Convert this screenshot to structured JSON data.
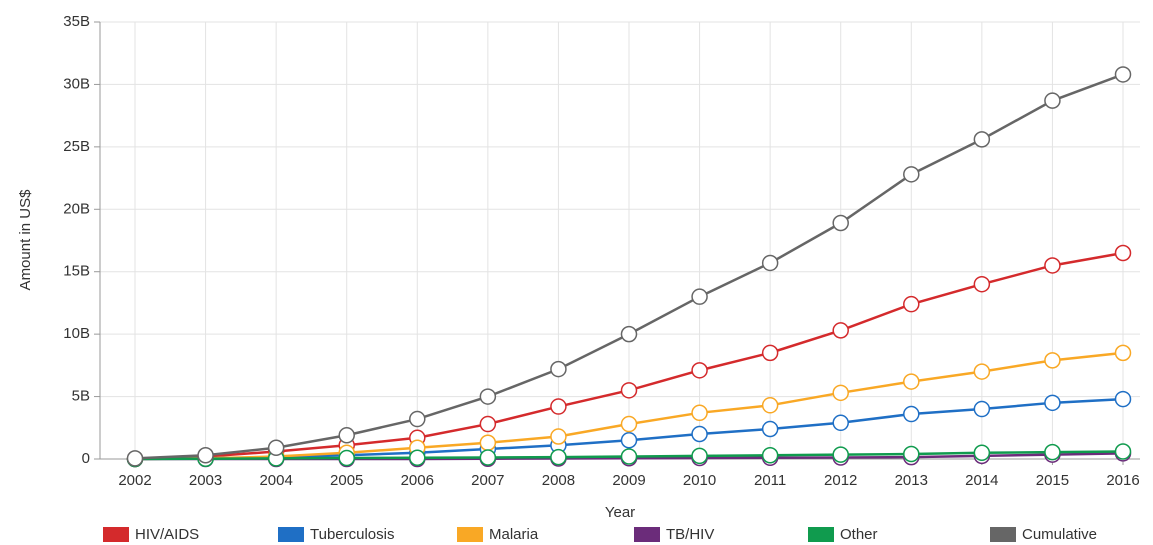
{
  "chart_data": {
    "type": "line",
    "xlabel": "Year",
    "ylabel": "Amount in US$",
    "categories": [
      "2002",
      "2003",
      "2004",
      "2005",
      "2006",
      "2007",
      "2008",
      "2009",
      "2010",
      "2011",
      "2012",
      "2013",
      "2014",
      "2015",
      "2016"
    ],
    "ylim": [
      0,
      35000000000.0
    ],
    "yticks": [
      {
        "value": 0,
        "label": "0"
      },
      {
        "value": 5000000000.0,
        "label": "5B"
      },
      {
        "value": 10000000000.0,
        "label": "10B"
      },
      {
        "value": 15000000000.0,
        "label": "15B"
      },
      {
        "value": 20000000000.0,
        "label": "20B"
      },
      {
        "value": 25000000000.0,
        "label": "25B"
      },
      {
        "value": 30000000000.0,
        "label": "30B"
      },
      {
        "value": 35000000000.0,
        "label": "35B"
      }
    ],
    "grid": true,
    "legend": "bottom",
    "series": [
      {
        "name": "HIV/AIDS",
        "color": "#d42a2c",
        "values": [
          20000000.0,
          200000000.0,
          600000000.0,
          1100000000.0,
          1700000000.0,
          2800000000.0,
          4200000000.0,
          5500000000.0,
          7100000000.0,
          8500000000.0,
          10300000000.0,
          12400000000.0,
          14000000000.0,
          15500000000.0,
          16500000000.0
        ]
      },
      {
        "name": "Tuberculosis",
        "color": "#1f6fc5",
        "values": [
          0,
          50000000.0,
          150000000.0,
          300000000.0,
          500000000.0,
          800000000.0,
          1100000000.0,
          1500000000.0,
          2000000000.0,
          2400000000.0,
          2900000000.0,
          3600000000.0,
          4000000000.0,
          4500000000.0,
          4800000000.0
        ]
      },
      {
        "name": "Malaria",
        "color": "#f9a825",
        "values": [
          0,
          50000000.0,
          200000000.0,
          500000000.0,
          900000000.0,
          1300000000.0,
          1800000000.0,
          2800000000.0,
          3700000000.0,
          4300000000.0,
          5300000000.0,
          6200000000.0,
          7000000000.0,
          7900000000.0,
          8500000000.0
        ]
      },
      {
        "name": "TB/HIV",
        "color": "#6b2c7a",
        "values": [
          0,
          0,
          0,
          0,
          0,
          20000000.0,
          40000000.0,
          60000000.0,
          80000000.0,
          100000000.0,
          120000000.0,
          150000000.0,
          250000000.0,
          350000000.0,
          450000000.0
        ]
      },
      {
        "name": "Other",
        "color": "#109b4e",
        "values": [
          0,
          20000000.0,
          50000000.0,
          80000000.0,
          100000000.0,
          120000000.0,
          150000000.0,
          200000000.0,
          250000000.0,
          300000000.0,
          350000000.0,
          400000000.0,
          500000000.0,
          550000000.0,
          600000000.0
        ]
      },
      {
        "name": "Cumulative",
        "color": "#666666",
        "values": [
          50000000.0,
          300000000.0,
          900000000.0,
          1900000000.0,
          3200000000.0,
          5000000000.0,
          7200000000.0,
          10000000000.0,
          13000000000.0,
          15700000000.0,
          18900000000.0,
          22800000000.0,
          25600000000.0,
          28700000000.0,
          30800000000.0
        ]
      }
    ]
  }
}
